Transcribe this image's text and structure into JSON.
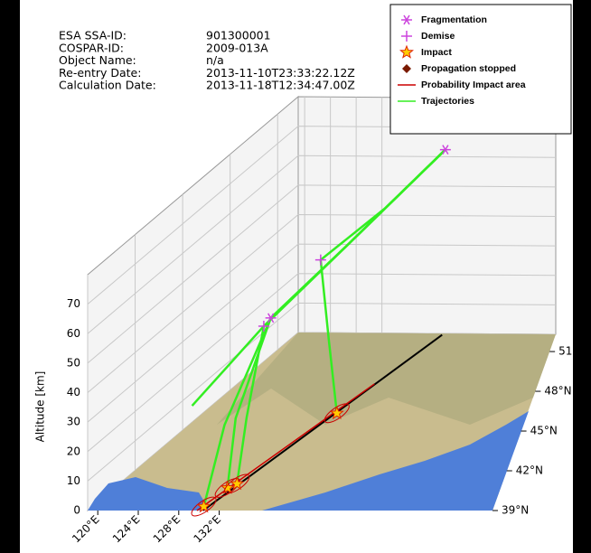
{
  "chart_data": {
    "type": "trajectory3d",
    "info": {
      "labels": [
        "ESA SSA-ID:",
        "COSPAR-ID:",
        "Object Name:",
        "Re-entry Date:",
        "Calculation Date:"
      ],
      "values": [
        "901300001",
        "2009-013A",
        "n/a",
        "2013-11-10T23:33:22.12Z",
        "2013-11-18T12:34:47.00Z"
      ]
    },
    "zlabel": "Altitude [km]",
    "xlim": [
      119,
      159
    ],
    "xticks": [
      {
        "value": 120,
        "label": "120°E"
      },
      {
        "value": 124,
        "label": "124°E"
      },
      {
        "value": 128,
        "label": "128°E"
      },
      {
        "value": 132,
        "label": "132°E"
      }
    ],
    "ylim": [
      39,
      52.3
    ],
    "yticks": [
      {
        "value": 39,
        "label": "39°N"
      },
      {
        "value": 42,
        "label": "42°N"
      },
      {
        "value": 45,
        "label": "45°N"
      },
      {
        "value": 48,
        "label": "48°N"
      },
      {
        "value": 51,
        "label": "51°N"
      }
    ],
    "zlim": [
      0,
      80
    ],
    "zticks": [
      0,
      10,
      20,
      30,
      40,
      50,
      60,
      70
    ],
    "grid": true,
    "legend": "top-right",
    "ground_track": {
      "color": "#000000",
      "lon": [
        130.4,
        141.5
      ],
      "lat": [
        39,
        52.2
      ]
    },
    "series": [
      {
        "name": "Fragmentation",
        "marker": "asterisk",
        "color": "#cc44dd",
        "lon": [
          143,
          130.9
        ],
        "lat": [
          51.5,
          44
        ],
        "alt": [
          66,
          42.7
        ]
      },
      {
        "name": "Demise",
        "marker": "plus",
        "color": "#cc44dd",
        "lon": [
          133.5,
          130.1
        ],
        "lat": [
          46.3,
          44
        ],
        "alt": [
          52,
          39.9
        ]
      },
      {
        "name": "Impact",
        "marker": "star",
        "color": "#ff9900",
        "lon": [
          130.1,
          130.7,
          131.3,
          135.5
        ],
        "lat": [
          39.3,
          40.7,
          41,
          46.3
        ],
        "alt": [
          0,
          0,
          0,
          0
        ]
      },
      {
        "name": "Propagation stopped",
        "marker": "diamond",
        "color": "#7a1a00",
        "lon": [],
        "lat": [],
        "alt": []
      },
      {
        "name": "Probability Impact area",
        "marker": "line",
        "color": "#cc0000",
        "lon": [
          129.8,
          137.2
        ],
        "lat": [
          39,
          48.5
        ],
        "alt": [
          0,
          0
        ]
      },
      {
        "name": "Trajectories",
        "marker": "line",
        "color": "#33ee22",
        "lines": [
          {
            "lon": [
              143,
              138,
              133.5,
              134.5,
              135.5
            ],
            "lat": [
              51.5,
              49,
              46.3,
              46.3,
              46.3
            ],
            "alt": [
              66,
              57.5,
              52,
              25,
              0
            ]
          },
          {
            "lon": [
              143,
              136,
              130.9,
              130,
              130.1
            ],
            "lat": [
              51.5,
              47,
              44,
              41,
              39.3
            ],
            "alt": [
              66,
              54.3,
              42.7,
              20,
              0
            ]
          },
          {
            "lon": [
              143,
              136,
              130.9,
              130.5,
              130.7
            ],
            "lat": [
              51.5,
              47,
              44,
              41.5,
              40.7
            ],
            "alt": [
              66,
              54.3,
              42.7,
              20,
              0
            ]
          },
          {
            "lon": [
              143,
              136,
              130.1,
              131,
              131.3
            ],
            "lat": [
              51.5,
              47,
              44,
              42,
              41
            ],
            "alt": [
              66,
              54.3,
              39.9,
              18,
              0
            ]
          },
          {
            "lon": [
              143,
              136,
              130.1,
              128
            ],
            "lat": [
              51.5,
              47,
              44,
              40
            ],
            "alt": [
              66,
              54.3,
              39.9,
              31
            ]
          }
        ]
      }
    ]
  }
}
